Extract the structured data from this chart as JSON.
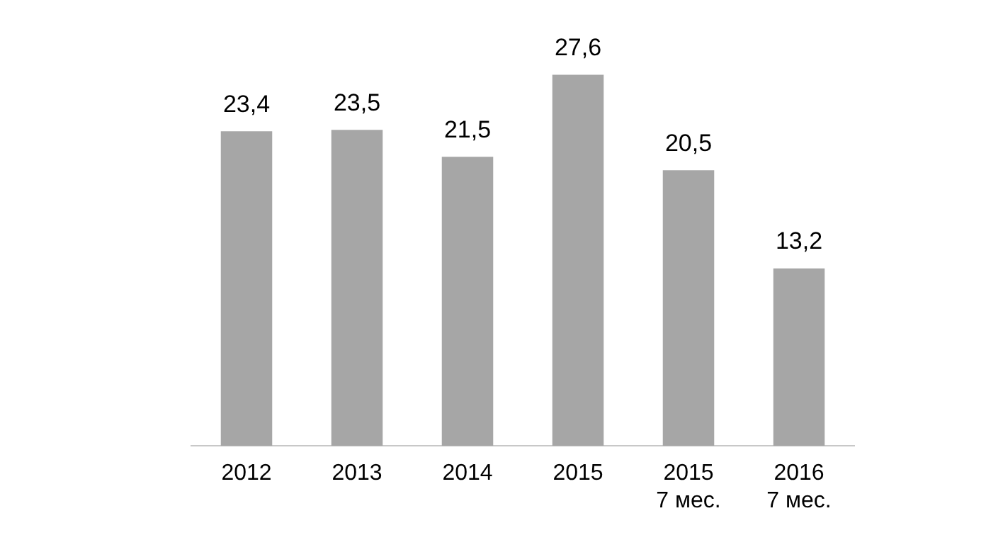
{
  "chart_data": {
    "type": "bar",
    "categories": [
      "2012",
      "2013",
      "2014",
      "2015",
      "2015\n7 мес.",
      "2016\n7 мес."
    ],
    "values": [
      23.4,
      23.5,
      21.5,
      27.6,
      20.5,
      13.2
    ],
    "color": "#a6a6a6",
    "value_labels": [
      "23,4",
      "23,5",
      "21,5",
      "27,6",
      "20,5",
      "13,2"
    ],
    "tick_labels": "x",
    "grid": false,
    "legend": false
  }
}
